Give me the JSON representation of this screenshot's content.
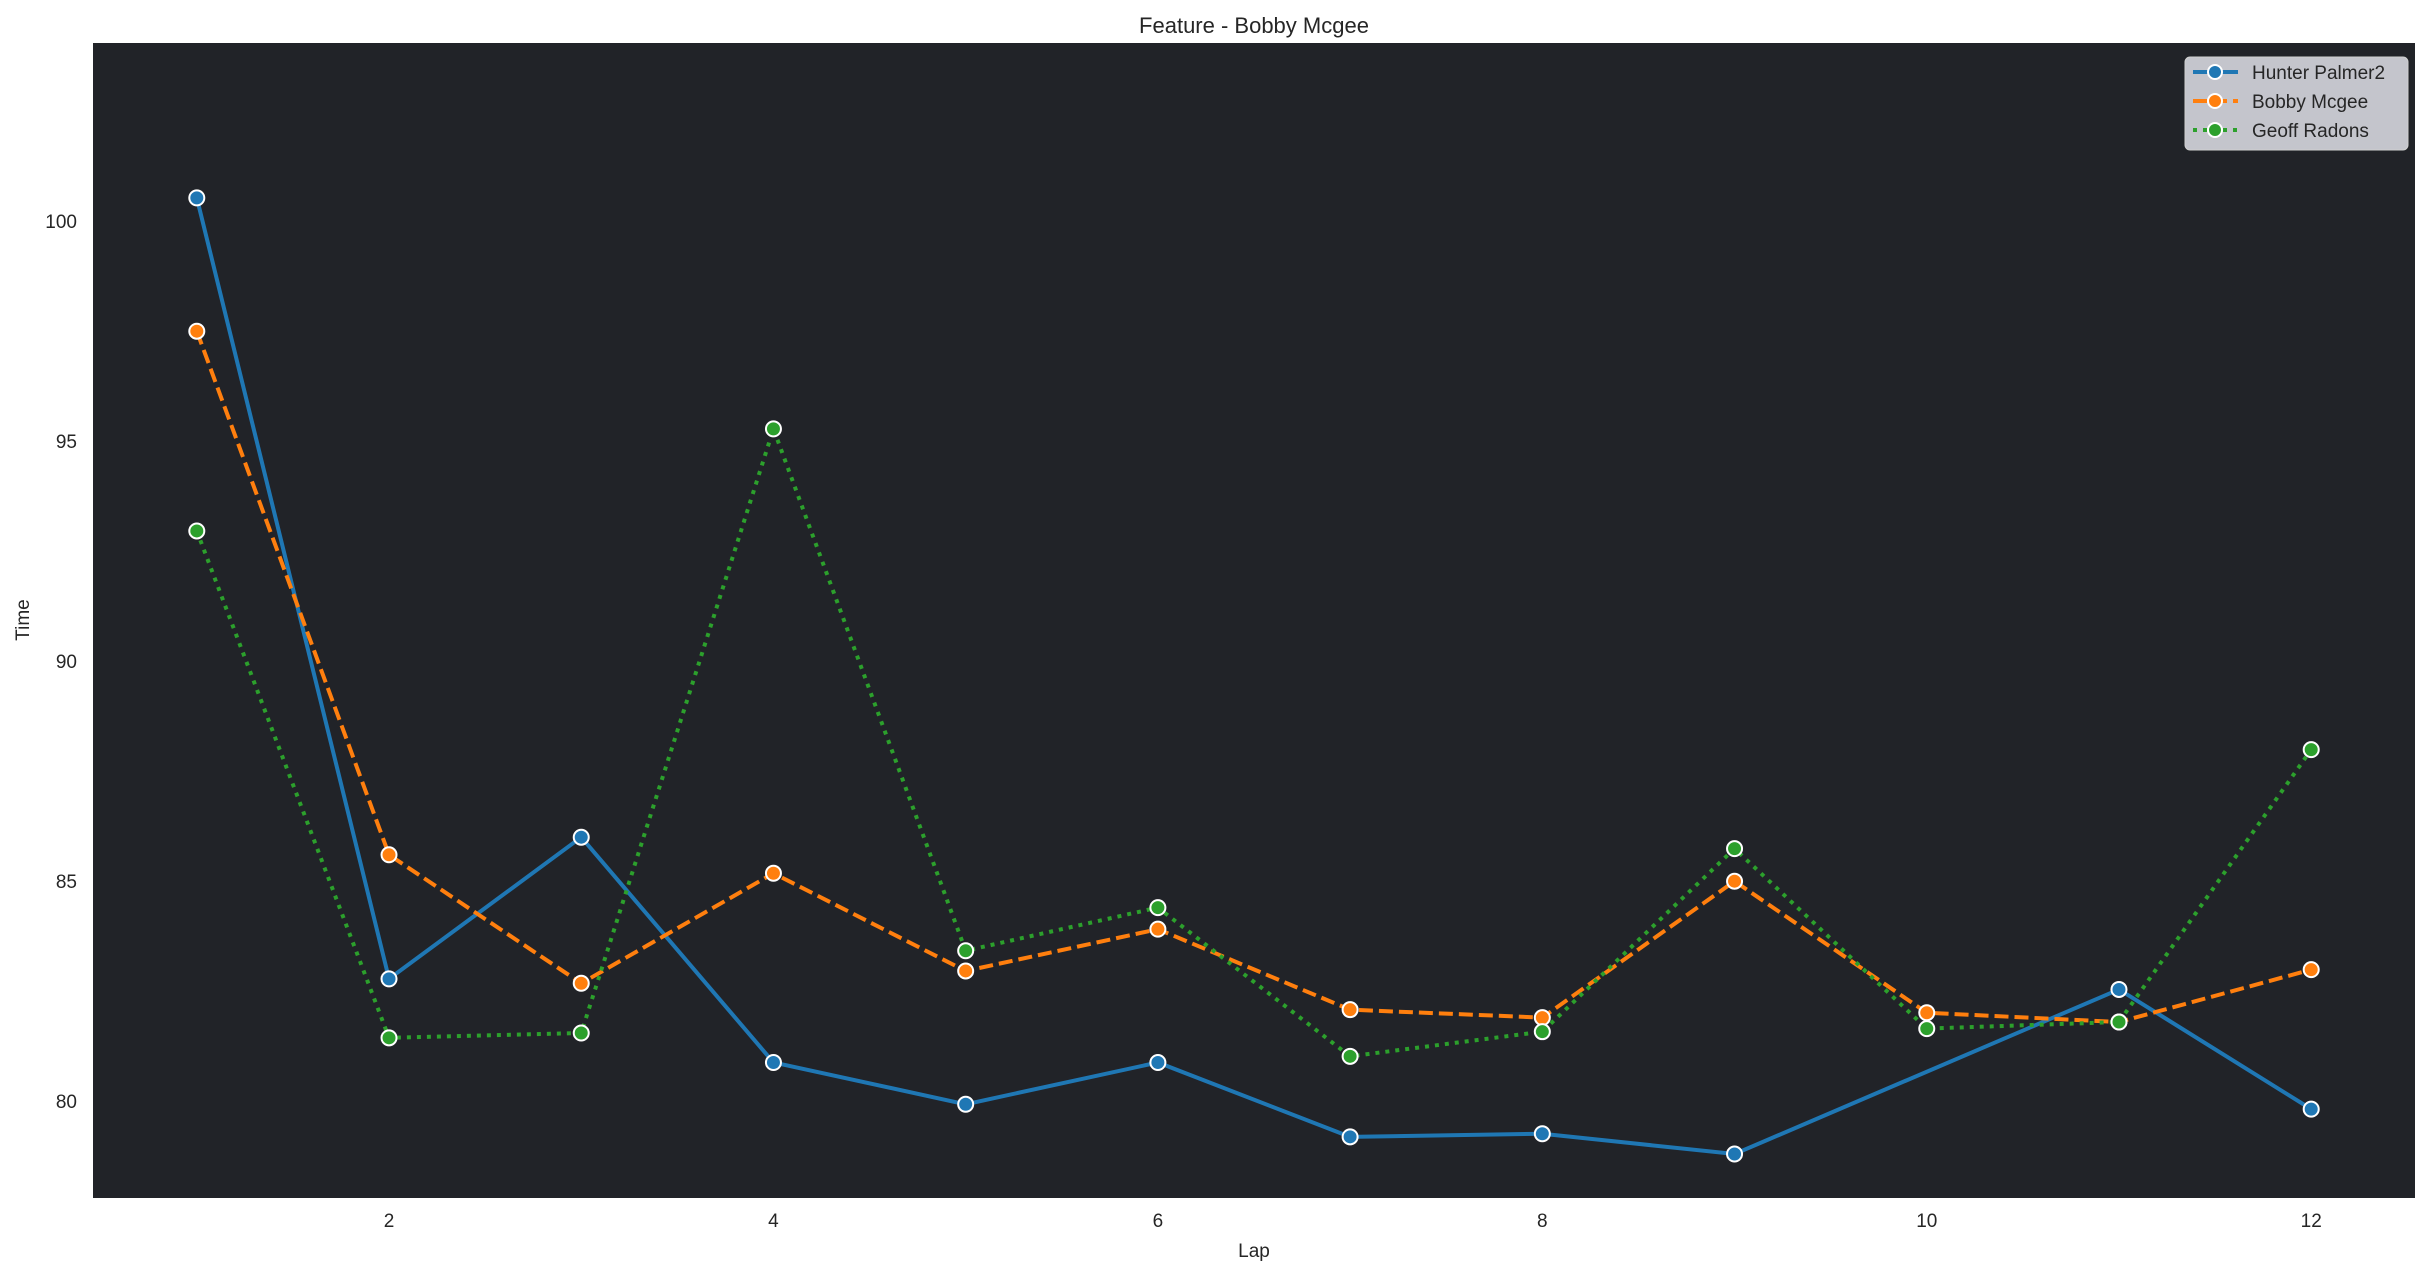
{
  "chart_data": {
    "type": "line",
    "title": "Feature - Bobby Mcgee",
    "xlabel": "Lap",
    "ylabel": "Time",
    "xlim": [
      0.46,
      12.54
    ],
    "ylim": [
      77.8,
      104.05
    ],
    "xticks": [
      2,
      4,
      6,
      8,
      10,
      12
    ],
    "yticks": [
      80,
      85,
      90,
      95,
      100
    ],
    "grid": false,
    "background": "#212328",
    "legend_position": "top-right",
    "series": [
      {
        "name": "Hunter Palmer2",
        "color": "#1f77b4",
        "style": "solid",
        "x": [
          1,
          2,
          3,
          4,
          5,
          6,
          7,
          8,
          9,
          11,
          12
        ],
        "values": [
          100.53,
          82.78,
          86.0,
          80.88,
          79.93,
          80.88,
          79.19,
          79.26,
          78.8,
          82.54,
          79.82
        ]
      },
      {
        "name": "Bobby Mcgee",
        "color": "#ff7f0e",
        "style": "dashed",
        "x": [
          1,
          2,
          3,
          4,
          5,
          6,
          7,
          8,
          9,
          10,
          11,
          12
        ],
        "values": [
          97.5,
          85.6,
          82.68,
          85.18,
          82.96,
          83.91,
          82.08,
          81.9,
          85.0,
          82.01,
          81.8,
          82.99
        ]
      },
      {
        "name": "Geoff Radons",
        "color": "#2ca02c",
        "style": "dotted",
        "x": [
          1,
          2,
          3,
          4,
          5,
          6,
          7,
          8,
          9,
          10,
          11,
          12
        ],
        "values": [
          92.96,
          81.44,
          81.55,
          95.28,
          83.42,
          84.4,
          81.02,
          81.58,
          85.74,
          81.65,
          81.8,
          87.99
        ]
      }
    ]
  }
}
